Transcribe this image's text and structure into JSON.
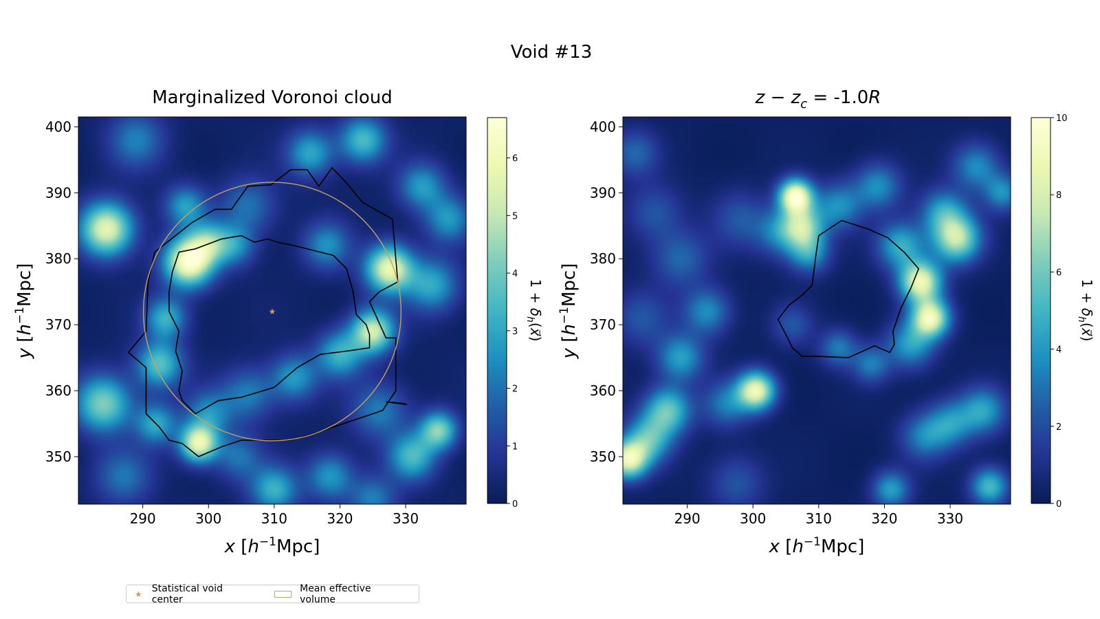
{
  "figure": {
    "suptitle": "Void #13"
  },
  "legend": {
    "items": [
      {
        "label": "Statistical void center",
        "marker": "star",
        "color": "#c9a060"
      },
      {
        "label": "Mean effective volume",
        "marker": "rect",
        "color": "#c9a060"
      }
    ]
  },
  "colors": {
    "contour": "#000000",
    "accent": "#c9a060",
    "colormap": [
      "#081d58",
      "#253494",
      "#225ea8",
      "#1d91c0",
      "#41b6c4",
      "#7fcdbb",
      "#c7e9b4",
      "#edf8b1",
      "#ffffd9"
    ]
  },
  "chart_data": [
    {
      "type": "heatmap",
      "title": "Marginalized Voronoi cloud",
      "xlabel": "x [h⁻¹Mpc]",
      "ylabel": "y [h⁻¹Mpc]",
      "xlim": [
        280.2,
        339.2
      ],
      "ylim": [
        342.8,
        401.5
      ],
      "xticks": [
        290,
        300,
        310,
        320,
        330
      ],
      "yticks": [
        350,
        360,
        370,
        380,
        390,
        400
      ],
      "colorbar": {
        "label": "1 + δ_h(x⃗)",
        "range": [
          0,
          6.7
        ],
        "ticks": [
          0,
          1,
          2,
          3,
          4,
          5,
          6
        ]
      },
      "void_center": {
        "x": 309.7,
        "y": 372.0
      },
      "effective_circle": {
        "cx": 309.7,
        "cy": 372.0,
        "r": 19.6
      },
      "density_blobs": [
        {
          "x": 284.5,
          "y": 384.5,
          "v": 5.5,
          "s": 2.8
        },
        {
          "x": 297.0,
          "y": 379.5,
          "v": 6.3,
          "s": 2.6
        },
        {
          "x": 293.5,
          "y": 371.0,
          "v": 3.0,
          "s": 2.2
        },
        {
          "x": 292.5,
          "y": 364.0,
          "v": 3.5,
          "s": 2.5
        },
        {
          "x": 284.0,
          "y": 358.0,
          "v": 4.0,
          "s": 3.0
        },
        {
          "x": 298.5,
          "y": 352.0,
          "v": 5.5,
          "s": 2.0
        },
        {
          "x": 292.0,
          "y": 355.0,
          "v": 2.8,
          "s": 2.2
        },
        {
          "x": 310.0,
          "y": 345.0,
          "v": 3.0,
          "s": 2.5
        },
        {
          "x": 300.0,
          "y": 382.5,
          "v": 3.0,
          "s": 2.2
        },
        {
          "x": 304.0,
          "y": 382.0,
          "v": 2.2,
          "s": 2.2
        },
        {
          "x": 318.0,
          "y": 382.0,
          "v": 2.3,
          "s": 2.5
        },
        {
          "x": 327.5,
          "y": 378.5,
          "v": 5.6,
          "s": 2.5
        },
        {
          "x": 334.0,
          "y": 376.0,
          "v": 2.8,
          "s": 2.8
        },
        {
          "x": 325.0,
          "y": 369.0,
          "v": 5.0,
          "s": 2.3
        },
        {
          "x": 320.0,
          "y": 365.5,
          "v": 3.0,
          "s": 2.5
        },
        {
          "x": 313.0,
          "y": 362.0,
          "v": 2.5,
          "s": 2.5
        },
        {
          "x": 306.0,
          "y": 359.5,
          "v": 2.0,
          "s": 2.8
        },
        {
          "x": 300.0,
          "y": 356.5,
          "v": 2.2,
          "s": 2.5
        },
        {
          "x": 326.0,
          "y": 357.0,
          "v": 2.0,
          "s": 3.0
        },
        {
          "x": 335.0,
          "y": 354.0,
          "v": 4.0,
          "s": 2.0
        },
        {
          "x": 331.0,
          "y": 350.0,
          "v": 3.2,
          "s": 2.5
        },
        {
          "x": 318.5,
          "y": 347.0,
          "v": 2.5,
          "s": 2.5
        },
        {
          "x": 325.0,
          "y": 343.5,
          "v": 2.0,
          "s": 2.5
        },
        {
          "x": 323.5,
          "y": 398.0,
          "v": 3.3,
          "s": 2.5
        },
        {
          "x": 315.5,
          "y": 396.0,
          "v": 2.8,
          "s": 2.5
        },
        {
          "x": 332.5,
          "y": 391.0,
          "v": 2.5,
          "s": 2.5
        },
        {
          "x": 296.5,
          "y": 388.0,
          "v": 2.6,
          "s": 2.2
        },
        {
          "x": 306.0,
          "y": 388.0,
          "v": 1.8,
          "s": 3.0
        },
        {
          "x": 289.0,
          "y": 398.0,
          "v": 2.0,
          "s": 3.0
        },
        {
          "x": 336.5,
          "y": 386.0,
          "v": 2.4,
          "s": 2.5
        },
        {
          "x": 304.5,
          "y": 350.0,
          "v": 1.8,
          "s": 2.5
        },
        {
          "x": 287.0,
          "y": 347.0,
          "v": 1.8,
          "s": 3.0
        }
      ],
      "contours": [
        [
          [
            287.8,
            365.8
          ],
          [
            290.5,
            369.0
          ],
          [
            290.8,
            376.5
          ],
          [
            291.8,
            381.0
          ],
          [
            297.5,
            385.5
          ],
          [
            301.0,
            387.5
          ],
          [
            303.5,
            387.5
          ],
          [
            306.0,
            391.0
          ],
          [
            309.5,
            391.2
          ],
          [
            312.5,
            393.5
          ],
          [
            315.0,
            393.5
          ],
          [
            316.8,
            391.0
          ],
          [
            318.8,
            393.8
          ],
          [
            321.0,
            391.5
          ],
          [
            323.5,
            388.5
          ],
          [
            328.0,
            386.0
          ],
          [
            328.5,
            380.0
          ],
          [
            328.8,
            376.5
          ],
          [
            326.0,
            375.0
          ],
          [
            324.5,
            373.5
          ],
          [
            327.0,
            368.0
          ],
          [
            328.5,
            368.0
          ],
          [
            328.5,
            360.0
          ],
          [
            326.5,
            357.0
          ],
          [
            322.0,
            355.5
          ],
          [
            319.0,
            354.5
          ],
          [
            316.0,
            353.5
          ],
          [
            312.5,
            352.5
          ],
          [
            308.5,
            352.5
          ],
          [
            305.0,
            352.5
          ],
          [
            302.0,
            351.5
          ],
          [
            298.5,
            350.0
          ],
          [
            296.0,
            352.0
          ],
          [
            294.0,
            352.5
          ],
          [
            292.5,
            354.5
          ],
          [
            290.5,
            356.5
          ],
          [
            290.5,
            360.0
          ],
          [
            290.5,
            363.5
          ],
          [
            287.8,
            365.8
          ]
        ],
        [
          [
            298.0,
            356.5
          ],
          [
            301.5,
            358.5
          ],
          [
            305.0,
            359.0
          ],
          [
            310.0,
            360.5
          ],
          [
            313.5,
            363.5
          ],
          [
            317.0,
            365.5
          ],
          [
            321.0,
            366.0
          ],
          [
            324.5,
            366.5
          ],
          [
            324.5,
            368.5
          ],
          [
            324.0,
            370.0
          ],
          [
            322.5,
            371.5
          ],
          [
            322.0,
            375.0
          ],
          [
            321.0,
            378.5
          ],
          [
            319.0,
            380.5
          ],
          [
            317.0,
            381.0
          ],
          [
            313.0,
            382.0
          ],
          [
            310.5,
            382.5
          ],
          [
            309.0,
            383.0
          ],
          [
            307.0,
            382.5
          ],
          [
            305.0,
            383.5
          ],
          [
            302.0,
            383.0
          ],
          [
            298.0,
            381.5
          ],
          [
            295.5,
            381.0
          ],
          [
            294.5,
            378.0
          ],
          [
            294.0,
            375.0
          ],
          [
            294.0,
            372.0
          ],
          [
            295.5,
            369.0
          ],
          [
            295.0,
            366.0
          ],
          [
            296.0,
            363.0
          ],
          [
            295.5,
            360.0
          ],
          [
            296.0,
            358.5
          ],
          [
            298.0,
            356.5
          ]
        ],
        [
          [
            327.0,
            358.3
          ],
          [
            329.5,
            358.1
          ],
          [
            330.2,
            357.9
          ],
          [
            327.0,
            358.3
          ]
        ]
      ]
    },
    {
      "type": "heatmap",
      "title": "z − z_c = -1.0R",
      "xlabel": "x [h⁻¹Mpc]",
      "ylabel": "y [h⁻¹Mpc]",
      "xlim": [
        280.2,
        339.2
      ],
      "ylim": [
        342.8,
        401.5
      ],
      "xticks": [
        290,
        300,
        310,
        320,
        330
      ],
      "yticks": [
        350,
        360,
        370,
        380,
        390,
        400
      ],
      "colorbar": {
        "label": "1 + δ_h(x⃗)",
        "range": [
          0,
          10
        ],
        "ticks": [
          0,
          2,
          4,
          6,
          8,
          10
        ]
      },
      "density_blobs": [
        {
          "x": 306.5,
          "y": 389.5,
          "v": 9.5,
          "s": 1.8
        },
        {
          "x": 307.5,
          "y": 385.0,
          "v": 6.0,
          "s": 2.2
        },
        {
          "x": 308.5,
          "y": 381.0,
          "v": 4.0,
          "s": 2.2
        },
        {
          "x": 304.0,
          "y": 384.0,
          "v": 3.0,
          "s": 2.5
        },
        {
          "x": 313.0,
          "y": 388.0,
          "v": 3.5,
          "s": 2.5
        },
        {
          "x": 319.0,
          "y": 391.0,
          "v": 3.5,
          "s": 2.5
        },
        {
          "x": 322.5,
          "y": 382.0,
          "v": 4.5,
          "s": 2.5
        },
        {
          "x": 325.5,
          "y": 376.5,
          "v": 8.5,
          "s": 2.2
        },
        {
          "x": 327.0,
          "y": 371.0,
          "v": 8.5,
          "s": 2.0
        },
        {
          "x": 331.0,
          "y": 383.0,
          "v": 7.0,
          "s": 2.5
        },
        {
          "x": 329.0,
          "y": 387.0,
          "v": 4.0,
          "s": 2.5
        },
        {
          "x": 324.0,
          "y": 367.0,
          "v": 4.0,
          "s": 2.5
        },
        {
          "x": 300.5,
          "y": 360.0,
          "v": 8.5,
          "s": 2.0
        },
        {
          "x": 296.0,
          "y": 358.0,
          "v": 3.0,
          "s": 2.5
        },
        {
          "x": 287.0,
          "y": 357.0,
          "v": 5.5,
          "s": 2.5
        },
        {
          "x": 284.0,
          "y": 352.5,
          "v": 5.0,
          "s": 2.5
        },
        {
          "x": 281.0,
          "y": 349.5,
          "v": 8.0,
          "s": 2.0
        },
        {
          "x": 289.0,
          "y": 365.0,
          "v": 4.0,
          "s": 2.5
        },
        {
          "x": 293.0,
          "y": 372.0,
          "v": 3.5,
          "s": 2.5
        },
        {
          "x": 289.0,
          "y": 380.0,
          "v": 2.5,
          "s": 3.0
        },
        {
          "x": 282.0,
          "y": 396.0,
          "v": 2.5,
          "s": 2.5
        },
        {
          "x": 285.0,
          "y": 387.0,
          "v": 2.0,
          "s": 3.0
        },
        {
          "x": 298.0,
          "y": 386.0,
          "v": 2.0,
          "s": 3.0
        },
        {
          "x": 313.0,
          "y": 366.5,
          "v": 3.0,
          "s": 2.0
        },
        {
          "x": 318.0,
          "y": 364.0,
          "v": 3.0,
          "s": 2.0
        },
        {
          "x": 306.0,
          "y": 370.0,
          "v": 2.0,
          "s": 2.2
        },
        {
          "x": 335.0,
          "y": 357.0,
          "v": 4.0,
          "s": 2.5
        },
        {
          "x": 330.0,
          "y": 355.0,
          "v": 3.5,
          "s": 2.5
        },
        {
          "x": 326.0,
          "y": 353.0,
          "v": 3.0,
          "s": 2.5
        },
        {
          "x": 336.0,
          "y": 345.5,
          "v": 5.0,
          "s": 2.0
        },
        {
          "x": 321.0,
          "y": 345.0,
          "v": 4.0,
          "s": 2.0
        },
        {
          "x": 334.0,
          "y": 394.0,
          "v": 3.5,
          "s": 2.5
        },
        {
          "x": 338.0,
          "y": 390.0,
          "v": 3.5,
          "s": 2.0
        },
        {
          "x": 297.5,
          "y": 346.0,
          "v": 2.0,
          "s": 3.0
        },
        {
          "x": 283.0,
          "y": 371.0,
          "v": 2.0,
          "s": 3.0
        }
      ],
      "contours": [
        [
          [
            303.8,
            370.8
          ],
          [
            305.5,
            373.0
          ],
          [
            307.5,
            374.5
          ],
          [
            309.0,
            376.0
          ],
          [
            309.5,
            380.0
          ],
          [
            310.0,
            383.5
          ],
          [
            313.5,
            385.8
          ],
          [
            317.5,
            384.5
          ],
          [
            320.5,
            383.2
          ],
          [
            323.0,
            381.0
          ],
          [
            325.2,
            378.5
          ],
          [
            324.0,
            375.5
          ],
          [
            322.5,
            372.5
          ],
          [
            321.3,
            369.0
          ],
          [
            321.5,
            367.0
          ],
          [
            320.8,
            365.8
          ],
          [
            318.5,
            366.8
          ],
          [
            314.5,
            365.0
          ],
          [
            310.0,
            365.2
          ],
          [
            307.5,
            365.2
          ],
          [
            306.0,
            366.5
          ],
          [
            305.0,
            368.5
          ],
          [
            303.8,
            370.8
          ]
        ]
      ]
    }
  ]
}
